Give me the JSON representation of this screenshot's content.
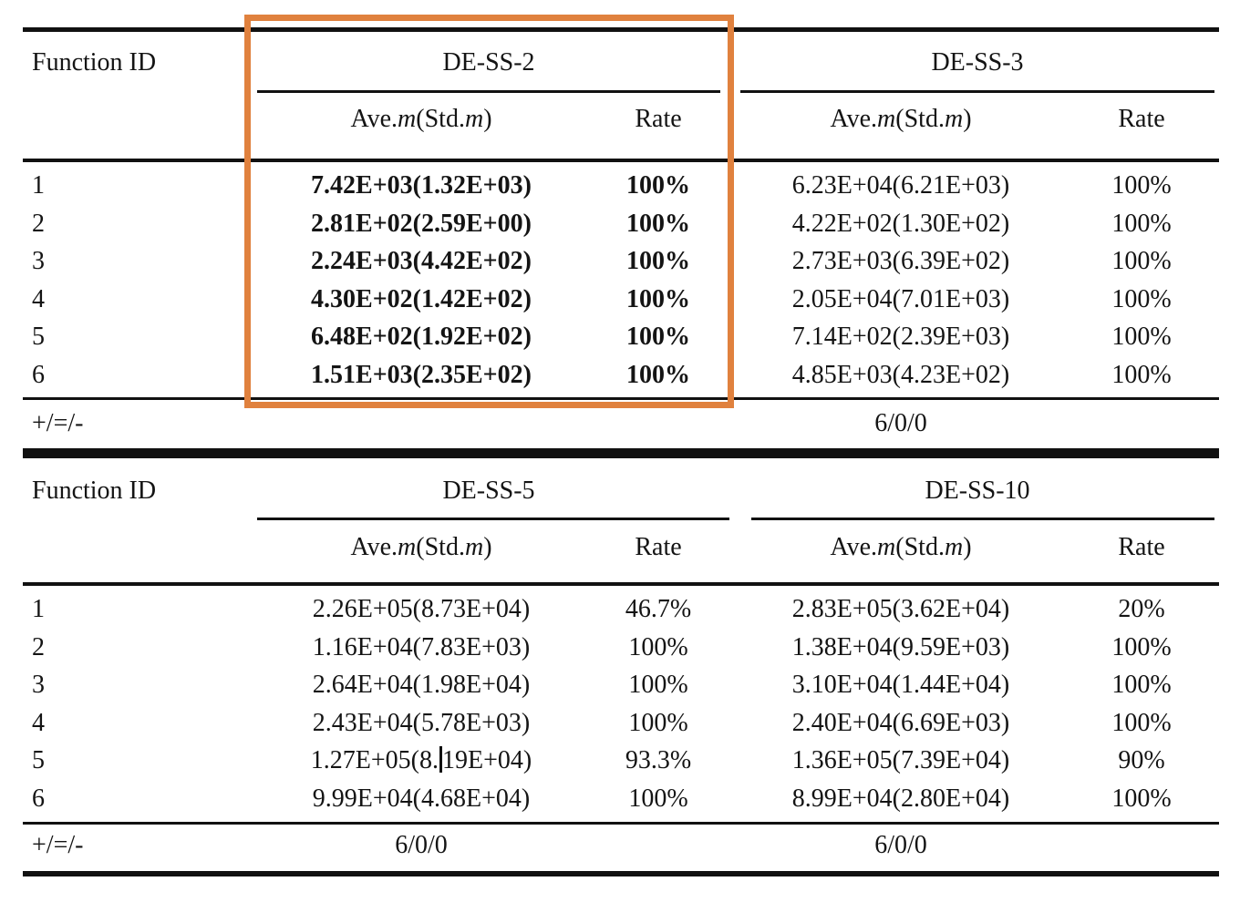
{
  "page": {
    "background": "#ffffff",
    "text_color": "#141414"
  },
  "labels": {
    "function_id": "Function ID",
    "rate": "Rate",
    "ave_std_parts": [
      "Ave.",
      "m",
      "(Std.",
      "m",
      ")"
    ],
    "summary_label": "+/=/-"
  },
  "highlight_box": {
    "color": "#e0813e",
    "highlights": "DE-SS-2 results column"
  },
  "tables": [
    {
      "function_ids": [
        "1",
        "2",
        "3",
        "4",
        "5",
        "6"
      ],
      "groups": [
        {
          "name": "DE-SS-2",
          "bold": true,
          "summary": "",
          "rows": [
            {
              "ave": "7.42E+03(1.32E+03)",
              "rate": "100%"
            },
            {
              "ave": "2.81E+02(2.59E+00)",
              "rate": "100%"
            },
            {
              "ave": "2.24E+03(4.42E+02)",
              "rate": "100%"
            },
            {
              "ave": "4.30E+02(1.42E+02)",
              "rate": "100%"
            },
            {
              "ave": "6.48E+02(1.92E+02)",
              "rate": "100%"
            },
            {
              "ave": "1.51E+03(2.35E+02)",
              "rate": "100%"
            }
          ]
        },
        {
          "name": "DE-SS-3",
          "bold": false,
          "summary": "6/0/0",
          "rows": [
            {
              "ave": "6.23E+04(6.21E+03)",
              "rate": "100%"
            },
            {
              "ave": "4.22E+02(1.30E+02)",
              "rate": "100%"
            },
            {
              "ave": "2.73E+03(6.39E+02)",
              "rate": "100%"
            },
            {
              "ave": "2.05E+04(7.01E+03)",
              "rate": "100%"
            },
            {
              "ave": "7.14E+02(2.39E+03)",
              "rate": "100%"
            },
            {
              "ave": "4.85E+03(4.23E+02)",
              "rate": "100%"
            }
          ]
        }
      ]
    },
    {
      "function_ids": [
        "1",
        "2",
        "3",
        "4",
        "5",
        "6"
      ],
      "groups": [
        {
          "name": "DE-SS-5",
          "bold": false,
          "summary": "6/0/0",
          "rows": [
            {
              "ave": "2.26E+05(8.73E+04)",
              "rate": "46.7%"
            },
            {
              "ave": "1.16E+04(7.83E+03)",
              "rate": "100%"
            },
            {
              "ave": "2.64E+04(1.98E+04)",
              "rate": "100%"
            },
            {
              "ave": "2.43E+04(5.78E+03)",
              "rate": "100%"
            },
            {
              "ave": "1.27E+05(8.19E+04)",
              "rate": "93.3%",
              "caret_after": 11
            },
            {
              "ave": "9.99E+04(4.68E+04)",
              "rate": "100%"
            }
          ]
        },
        {
          "name": "DE-SS-10",
          "bold": false,
          "summary": "6/0/0",
          "rows": [
            {
              "ave": "2.83E+05(3.62E+04)",
              "rate": "20%"
            },
            {
              "ave": "1.38E+04(9.59E+03)",
              "rate": "100%"
            },
            {
              "ave": "3.10E+04(1.44E+04)",
              "rate": "100%"
            },
            {
              "ave": "2.40E+04(6.69E+03)",
              "rate": "100%"
            },
            {
              "ave": "1.36E+05(7.39E+04)",
              "rate": "90%"
            },
            {
              "ave": "8.99E+04(2.80E+04)",
              "rate": "100%"
            }
          ]
        }
      ]
    }
  ]
}
